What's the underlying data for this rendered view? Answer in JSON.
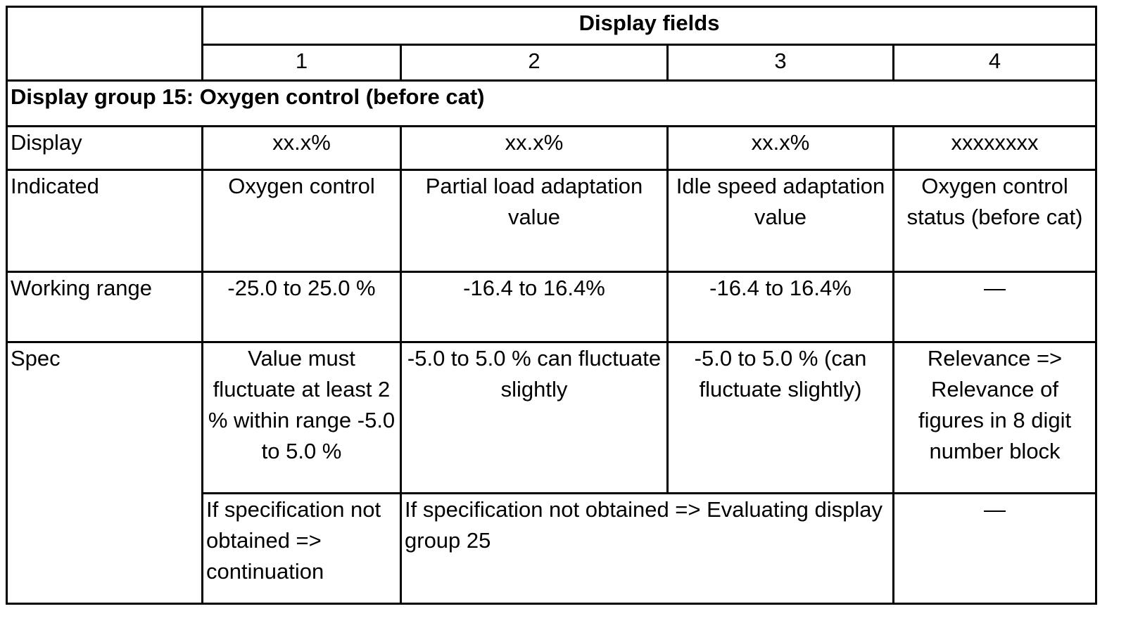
{
  "header": {
    "title": "Display fields",
    "fields": [
      "1",
      "2",
      "3",
      "4"
    ]
  },
  "group_title": "Display group 15: Oxygen control (before cat)",
  "rows": [
    {
      "label": "Display",
      "cells": [
        "xx.x%",
        "xx.x%",
        "xx.x%",
        "xxxxxxxx"
      ]
    },
    {
      "label": "Indicated",
      "cells": [
        "Oxygen control",
        "Partial load adaptation value",
        "Idle speed adaptation value",
        "Oxygen control status (before cat)"
      ]
    },
    {
      "label": "Working range",
      "cells": [
        "-25.0 to 25.0 %",
        "-16.4 to 16.4%",
        "-16.4 to 16.4%",
        "—"
      ]
    }
  ],
  "spec": {
    "label": "Spec",
    "cells": [
      "Value must fluctuate at least 2 % within range -5.0 to 5.0 %",
      "-5.0 to 5.0 % can fluctuate slightly",
      "-5.0 to 5.0 % (can fluctuate slightly)",
      "Relevance => Relevance of figures in 8 digit number block"
    ],
    "failure": [
      "If specification not obtained => continuation",
      "If specification not obtained => Evaluating display group 25",
      "—"
    ]
  }
}
